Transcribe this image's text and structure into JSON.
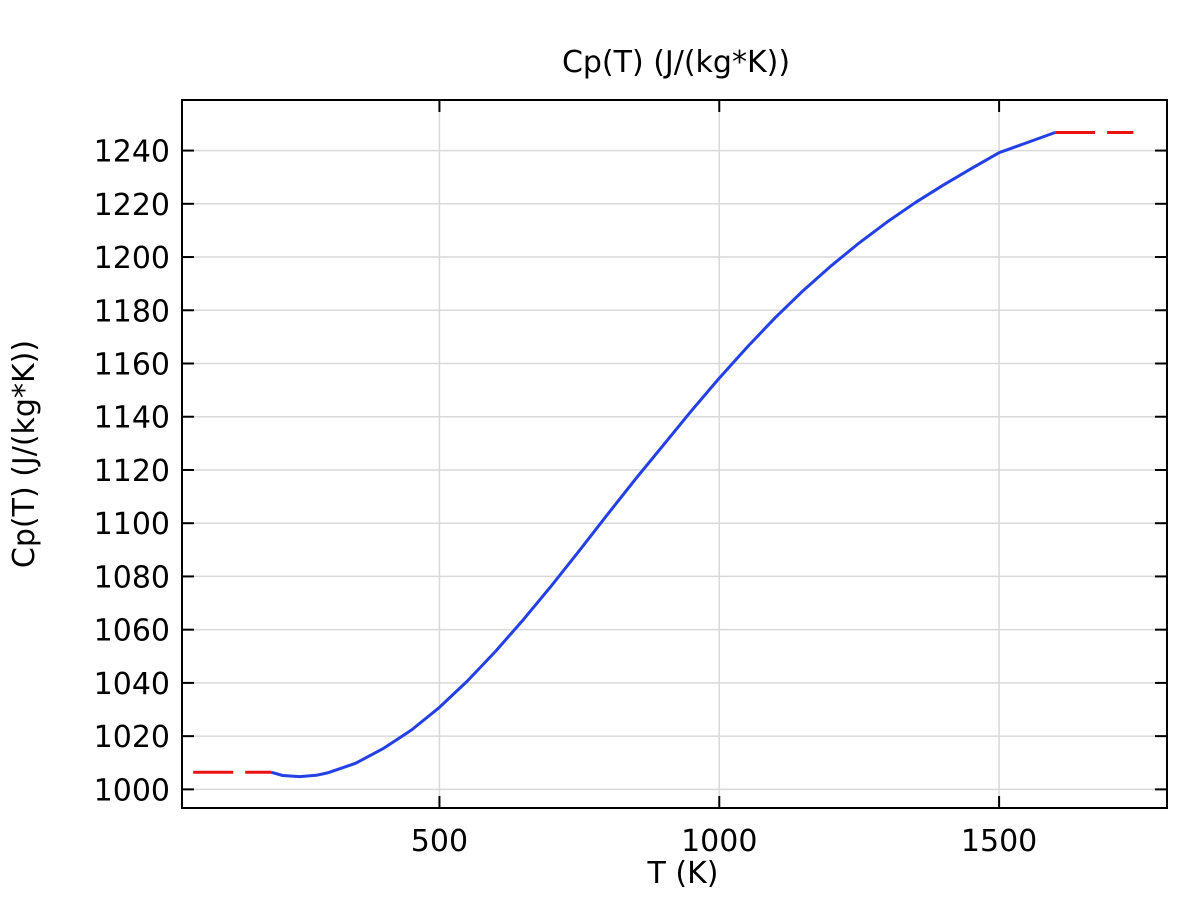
{
  "chart_data": {
    "type": "line",
    "title": "Cp(T) (J/(kg*K))",
    "xlabel": "T (K)",
    "ylabel": "Cp(T) (J/(kg*K))",
    "xlim": [
      40,
      1800
    ],
    "ylim": [
      993,
      1259
    ],
    "x_ticks": [
      500,
      1000,
      1500
    ],
    "y_ticks": [
      1000,
      1020,
      1040,
      1060,
      1080,
      1100,
      1120,
      1140,
      1160,
      1180,
      1200,
      1220,
      1240
    ],
    "grid": true,
    "colors": {
      "main": "#2340e6",
      "extrapolation": "#ee1111",
      "grid": "#d9d9d9",
      "axis": "#000000"
    },
    "series": [
      {
        "style": "solid",
        "color": "#2340e6",
        "x": [
          200,
          220,
          250,
          280,
          300,
          350,
          400,
          450,
          500,
          550,
          600,
          650,
          700,
          750,
          800,
          850,
          900,
          950,
          1000,
          1050,
          1100,
          1150,
          1200,
          1250,
          1300,
          1350,
          1400,
          1450,
          1500,
          1550,
          1600
        ],
        "y": [
          1006.4,
          1005.2,
          1004.8,
          1005.3,
          1006.2,
          1009.8,
          1015.4,
          1022.3,
          1030.8,
          1040.7,
          1051.8,
          1063.8,
          1076.5,
          1089.7,
          1103.2,
          1116.5,
          1129.3,
          1142.2,
          1154.5,
          1166.2,
          1177.2,
          1187.4,
          1196.7,
          1205.3,
          1213.2,
          1220.4,
          1227.0,
          1233.2,
          1239.2,
          1243.0,
          1246.8
        ]
      },
      {
        "style": "dashed",
        "color": "#ee1111",
        "x": [
          60,
          200
        ],
        "y": [
          1006.4,
          1006.4
        ]
      },
      {
        "style": "dashed",
        "color": "#ee1111",
        "x": [
          1600,
          1740
        ],
        "y": [
          1246.8,
          1246.8
        ]
      }
    ]
  }
}
